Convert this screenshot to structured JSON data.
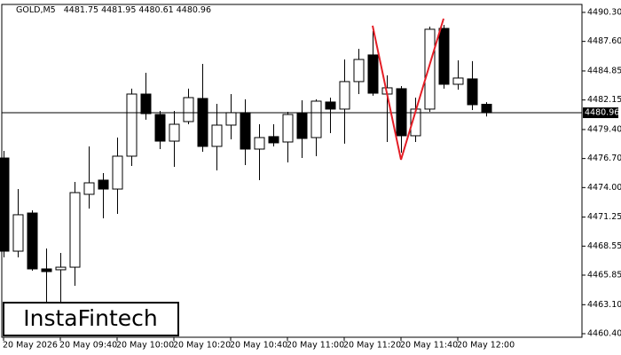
{
  "chart_data": {
    "type": "candlestick",
    "symbol": "GOLD,M5",
    "last_ohlc": [
      4481.75,
      4481.95,
      4480.61,
      4480.96
    ],
    "watermark": "InstaFintech",
    "categories": [
      "20 May 2026",
      null,
      null,
      null,
      "20 May 09:40",
      null,
      null,
      null,
      "20 May 10:00",
      null,
      null,
      null,
      "20 May 10:20",
      null,
      null,
      null,
      "20 May 10:40",
      null,
      null,
      null,
      "20 May 11:00",
      null,
      null,
      null,
      "20 May 11:20",
      null,
      null,
      null,
      "20 May 11:40",
      null,
      null,
      null,
      "20 May 12:00",
      null,
      null
    ],
    "open": [
      4476.75,
      4468.08,
      4471.63,
      4466.43,
      4466.35,
      4466.59,
      4473.37,
      4474.69,
      4473.86,
      4476.92,
      4482.7,
      4480.8,
      4478.32,
      4480.14,
      4482.29,
      4477.83,
      4479.81,
      4480.97,
      4477.58,
      4478.74,
      4478.24,
      4480.88,
      4478.65,
      4481.96,
      4481.3,
      4483.86,
      4486.34,
      4482.7,
      4483.2,
      4478.82,
      4481.3,
      4488.81,
      4483.61,
      4484.11,
      4481.75
    ],
    "high": [
      4477.41,
      4473.86,
      4471.88,
      4468.33,
      4467.92,
      4474.52,
      4477.83,
      4475.35,
      4478.65,
      4483.2,
      4484.68,
      4481.13,
      4481.13,
      4483.2,
      4485.51,
      4481.79,
      4482.7,
      4482.21,
      4479.89,
      4479.89,
      4481.05,
      4482.12,
      4482.21,
      4482.37,
      4485.92,
      4486.91,
      4488.57,
      4484.44,
      4483.44,
      4482.37,
      4488.98,
      4489.14,
      4485.84,
      4485.76,
      4481.95
    ],
    "low": [
      4467.5,
      4467.5,
      4466.26,
      4462.96,
      4462.96,
      4464.86,
      4472.05,
      4471.14,
      4471.55,
      4476.01,
      4480.31,
      4477.58,
      4475.93,
      4479.89,
      4477.33,
      4475.6,
      4478.49,
      4476.09,
      4474.69,
      4477.83,
      4476.34,
      4476.75,
      4476.92,
      4479.07,
      4478.08,
      4482.7,
      4482.54,
      4478.24,
      4477.25,
      4478.24,
      4481.05,
      4483.2,
      4483.11,
      4481.21,
      4480.61
    ],
    "close": [
      4468.08,
      4471.47,
      4466.43,
      4466.18,
      4466.59,
      4473.53,
      4474.44,
      4473.86,
      4476.92,
      4482.7,
      4480.88,
      4478.32,
      4479.89,
      4482.37,
      4477.83,
      4479.81,
      4480.97,
      4477.58,
      4478.65,
      4478.16,
      4480.8,
      4478.57,
      4482.04,
      4481.3,
      4483.86,
      4485.92,
      4482.78,
      4483.28,
      4478.82,
      4481.3,
      4488.73,
      4483.61,
      4484.19,
      4481.71,
      4480.96
    ],
    "up_color": "#ffffff",
    "down_color": "#000000",
    "current_price": 4480.96,
    "pattern": {
      "x": [
        26,
        28,
        31
      ],
      "values": [
        4489.06,
        4476.59,
        4489.72
      ],
      "color": "#e41e26"
    },
    "ylim": [
      4460.07,
      4491.04
    ],
    "yticks": [
      {
        "value": 4490.3,
        "label": "4490.30"
      },
      {
        "value": 4487.6,
        "label": "4487.60"
      },
      4484.85,
      4482.15,
      {
        "value": 4479.4,
        "label": "4479.40"
      },
      {
        "value": 4476.7,
        "label": "4476.70"
      },
      {
        "value": 4474,
        "label": "4474.00"
      },
      4471.25,
      4468.55,
      4465.85,
      {
        "value": 4463.1,
        "label": "4463.10"
      },
      {
        "value": 4460.4,
        "label": "4460.40"
      }
    ],
    "grid": false
  }
}
